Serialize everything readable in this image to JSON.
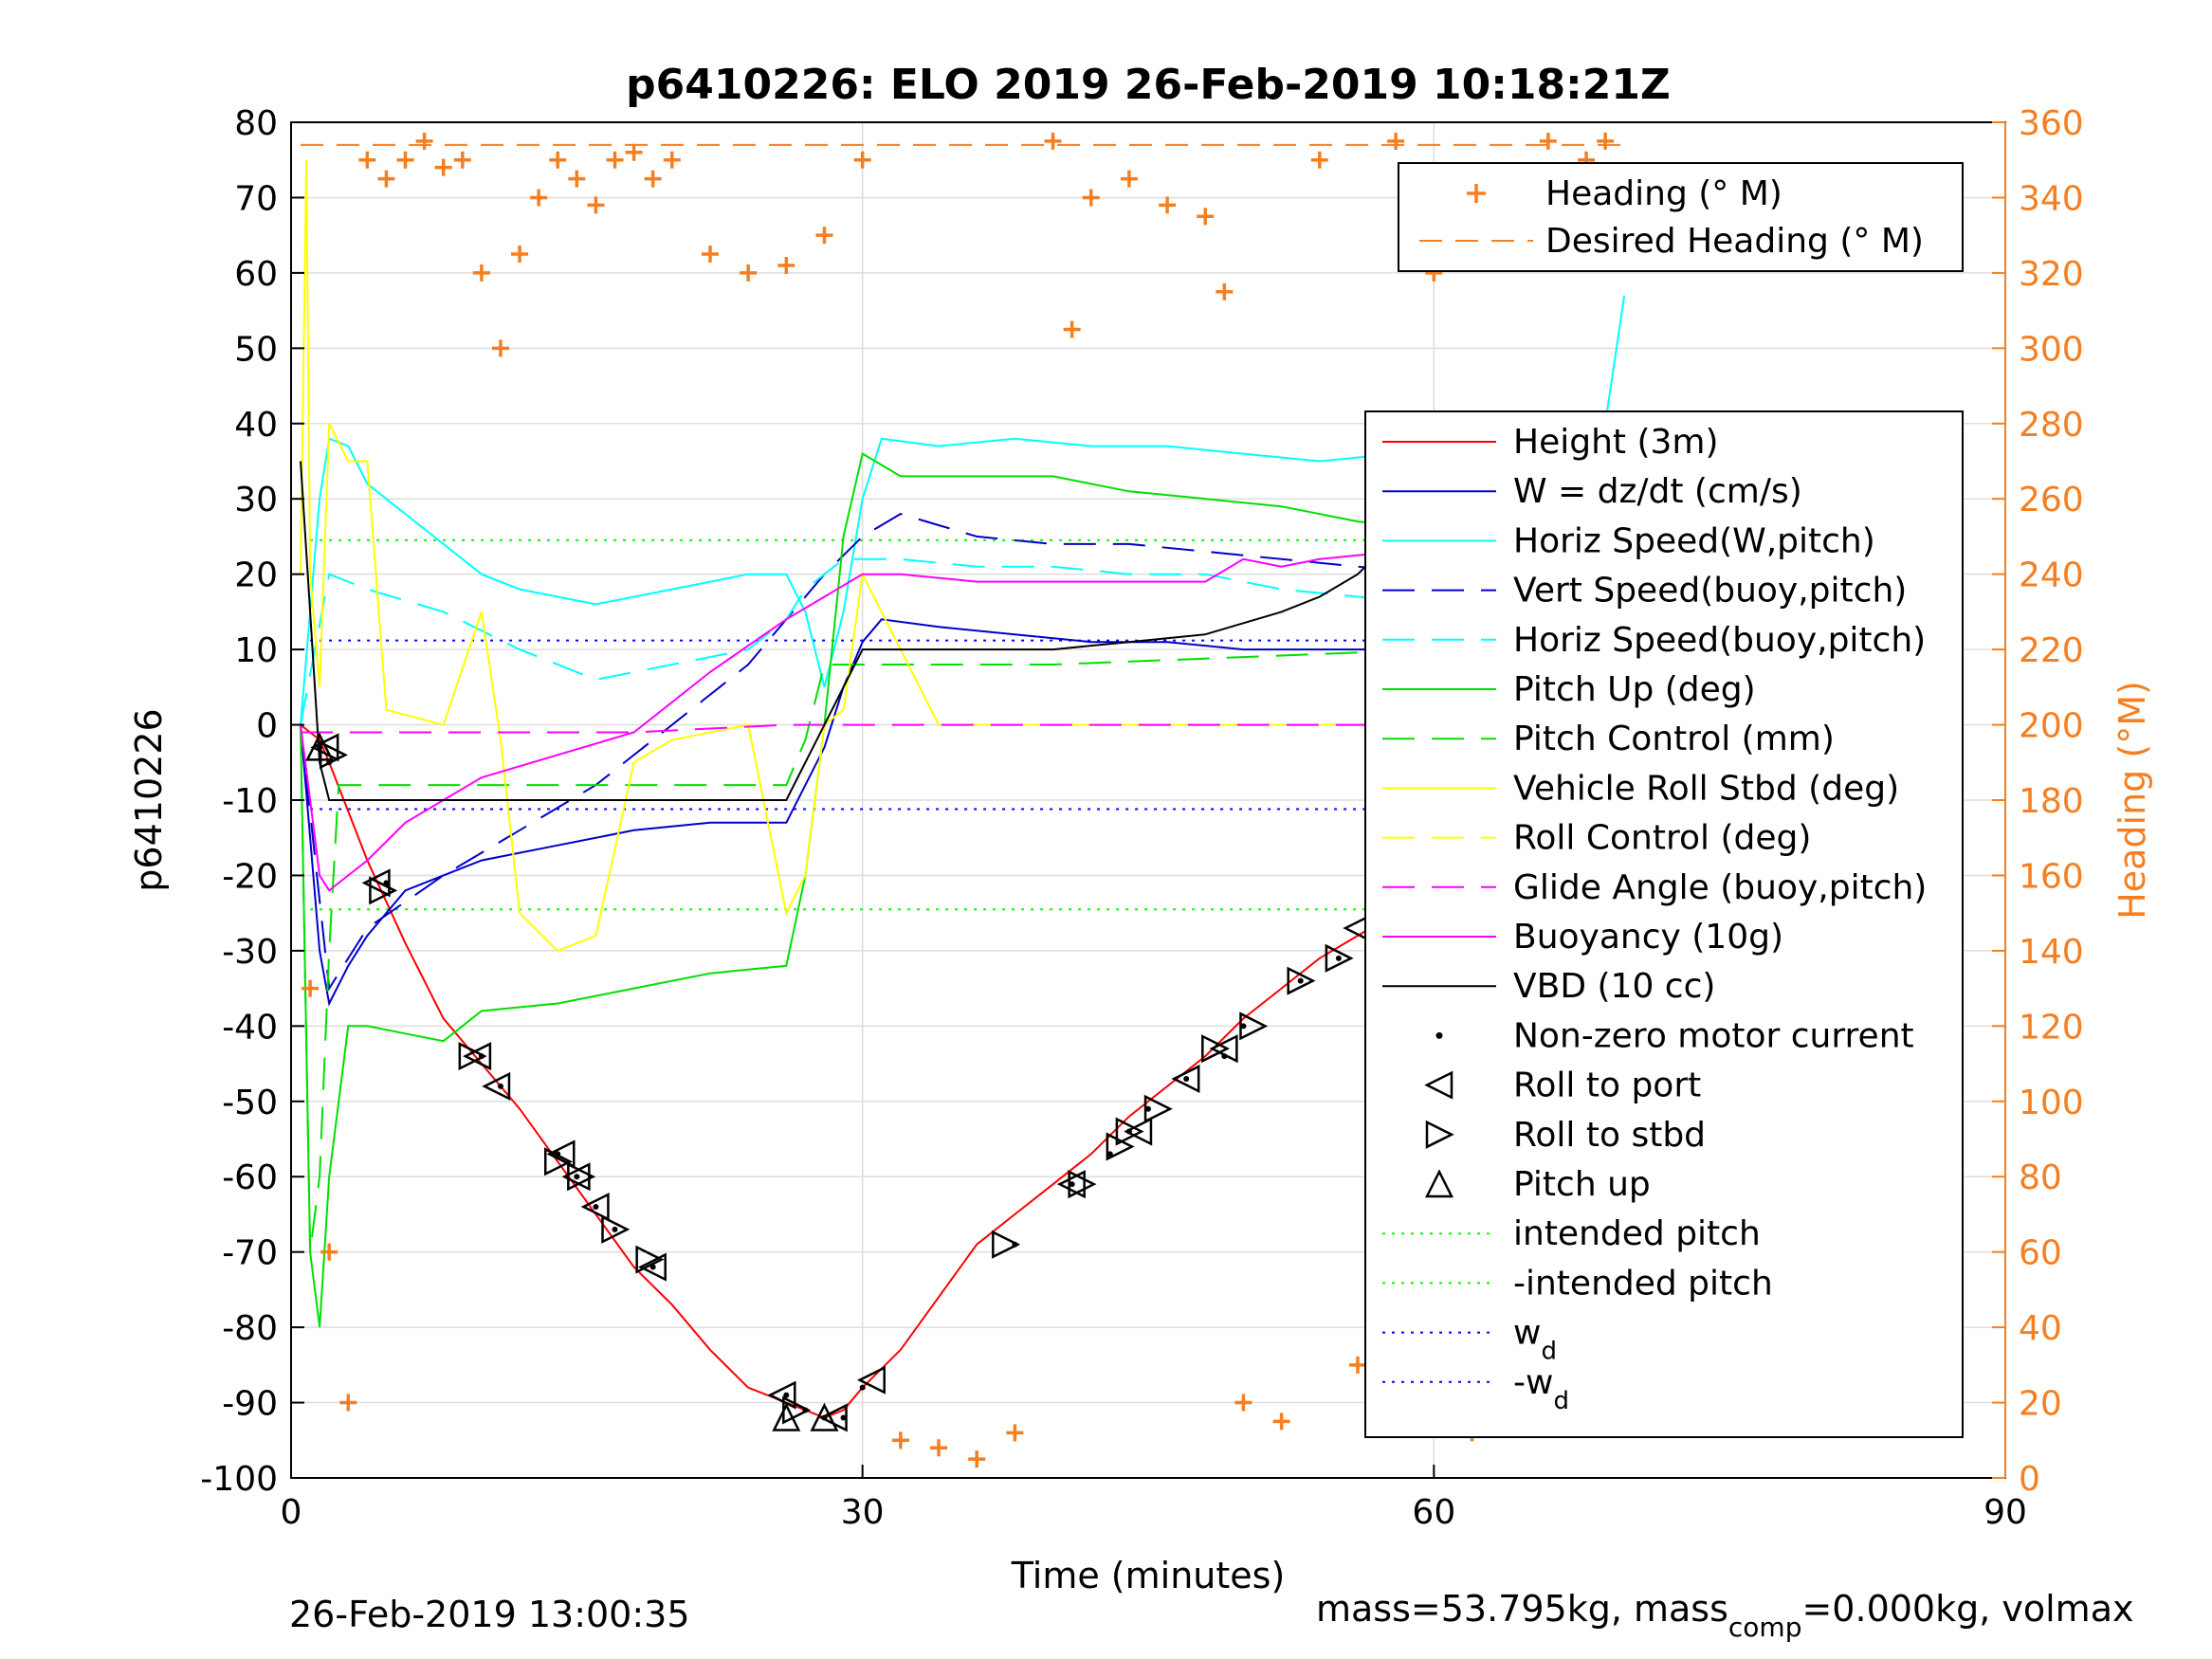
{
  "chart_data": {
    "type": "line",
    "title": "p6410226: ELO 2019 26-Feb-2019 10:18:21Z",
    "xlabel": "Time (minutes)",
    "ylabel": "p6410226",
    "y2label": "Heading (°M)",
    "xlim": [
      0,
      90
    ],
    "ylim": [
      -100,
      80
    ],
    "y2lim": [
      0,
      360
    ],
    "xticks": [
      "0",
      "30",
      "60",
      "90"
    ],
    "yticks": [
      "80",
      "70",
      "60",
      "50",
      "40",
      "30",
      "20",
      "10",
      "0",
      "-10",
      "-20",
      "-30",
      "-40",
      "-50",
      "-60",
      "-70",
      "-80",
      "-90",
      "-100"
    ],
    "y2ticks": [
      "360",
      "340",
      "320",
      "300",
      "280",
      "260",
      "240",
      "220",
      "200",
      "180",
      "160",
      "140",
      "120",
      "100",
      "80",
      "60",
      "40",
      "20",
      "0"
    ],
    "grid": true,
    "colors": {
      "heading": "#f57f20",
      "height": "#ff0000",
      "w": "#0000cc",
      "horiz": "#00ffff",
      "pitch": "#00e000",
      "roll": "#ffff00",
      "glide": "#ff00ff",
      "vbd": "#000000",
      "intended": "#00ff00",
      "wd": "#0000ff"
    },
    "legend_top": {
      "position": "top-right",
      "entries": [
        "Heading (° M)",
        "Desired Heading (° M)"
      ]
    },
    "legend_main": {
      "position": "right",
      "entries": [
        "Height (3m)",
        "W = dz/dt (cm/s)",
        "Horiz Speed(W,pitch)",
        "Vert Speed(buoy,pitch)",
        "Horiz Speed(buoy,pitch)",
        "Pitch Up (deg)",
        "Pitch Control (mm)",
        "Vehicle Roll Stbd (deg)",
        "Roll Control (deg)",
        "Glide Angle (buoy,pitch)",
        "Buoyancy (10g)",
        "VBD (10 cc)",
        "Non-zero motor current",
        "Roll to port",
        "Roll to stbd",
        "Pitch up",
        "intended pitch",
        "-intended pitch",
        "w",
        "-w"
      ],
      "subscripts": {
        "w": "d",
        "-w": "d"
      }
    },
    "reference_lines": {
      "intended_pitch": 24.5,
      "neg_intended_pitch": -24.5,
      "w_d": 11.2,
      "neg_w_d": -11.2,
      "desired_heading": 354
    },
    "series": [
      {
        "name": "Height (3m)",
        "x": [
          0.5,
          1.5,
          2,
          4,
          6,
          8,
          10,
          12,
          14,
          16,
          18,
          20,
          22,
          24,
          26,
          27,
          28,
          29,
          30,
          32,
          34,
          36,
          38,
          40,
          42,
          44,
          46,
          48,
          50,
          52,
          54,
          56,
          58,
          60,
          62,
          64,
          66,
          68,
          69
        ],
        "y": [
          0,
          -2,
          -5,
          -18,
          -29,
          -39,
          -45,
          -51,
          -58,
          -65,
          -72,
          -77,
          -83,
          -88,
          -90,
          -91,
          -92,
          -91,
          -88,
          -83,
          -76,
          -69,
          -65,
          -61,
          -57,
          -52,
          -48,
          -44,
          -39,
          -35,
          -31,
          -28,
          -25,
          -20,
          -15,
          -11,
          -7,
          -3,
          -1
        ]
      },
      {
        "name": "W = dz/dt (cm/s)",
        "x": [
          0.5,
          1,
          1.5,
          2,
          3,
          4,
          6,
          8,
          10,
          14,
          18,
          22,
          26,
          28,
          29,
          30,
          31,
          34,
          38,
          42,
          46,
          50,
          54,
          58,
          62,
          66,
          69
        ],
        "y": [
          0,
          -15,
          -30,
          -37,
          -32,
          -28,
          -22,
          -20,
          -18,
          -16,
          -14,
          -13,
          -13,
          -3,
          5,
          11,
          14,
          13,
          12,
          11,
          11,
          10,
          10,
          10,
          10,
          9,
          9
        ]
      },
      {
        "name": "Horiz Speed(W,pitch)",
        "x": [
          0.5,
          1,
          1.5,
          2,
          3,
          4,
          6,
          8,
          10,
          12,
          14,
          16,
          20,
          24,
          26,
          27,
          28,
          29,
          30,
          31,
          34,
          38,
          42,
          46,
          50,
          54,
          58,
          62,
          66,
          68,
          69,
          70
        ],
        "y": [
          0,
          15,
          30,
          38,
          37,
          32,
          28,
          24,
          20,
          18,
          17,
          16,
          18,
          20,
          20,
          15,
          5,
          15,
          30,
          38,
          37,
          38,
          37,
          37,
          36,
          35,
          36,
          38,
          38,
          36,
          40,
          57
        ]
      },
      {
        "name": "Vert Speed(buoy,pitch)",
        "x": [
          0.5,
          2,
          4,
          8,
          12,
          16,
          20,
          24,
          26,
          28,
          30,
          32,
          36,
          40,
          44,
          48,
          52,
          56,
          60,
          64,
          68
        ],
        "y": [
          0,
          -35,
          -27,
          -20,
          -14,
          -8,
          0,
          8,
          14,
          20,
          25,
          28,
          25,
          24,
          24,
          23,
          22,
          21,
          20,
          19,
          18
        ]
      },
      {
        "name": "Horiz Speed(buoy,pitch)",
        "x": [
          0.5,
          2,
          4,
          8,
          12,
          16,
          20,
          24,
          26,
          27,
          28,
          29,
          30,
          32,
          36,
          40,
          44,
          48,
          52,
          56,
          60,
          64,
          68,
          69
        ],
        "y": [
          0,
          20,
          18,
          15,
          10,
          6,
          8,
          10,
          14,
          18,
          20,
          22,
          22,
          22,
          21,
          21,
          20,
          20,
          18,
          17,
          16,
          15,
          14,
          12
        ]
      },
      {
        "name": "Pitch Up (deg)",
        "x": [
          0.5,
          1,
          1.5,
          2,
          3,
          4,
          6,
          8,
          10,
          14,
          18,
          22,
          26,
          27,
          28,
          29,
          30,
          32,
          36,
          40,
          44,
          48,
          52,
          56,
          60,
          64,
          68,
          69
        ],
        "y": [
          0,
          -70,
          -80,
          -60,
          -40,
          -40,
          -41,
          -42,
          -38,
          -37,
          -35,
          -33,
          -32,
          -20,
          0,
          25,
          36,
          33,
          33,
          33,
          31,
          30,
          29,
          27,
          26,
          25,
          23,
          22
        ]
      },
      {
        "name": "Pitch Control (mm)",
        "x": [
          0.5,
          1,
          1.5,
          2,
          2.5,
          4,
          10,
          20,
          26,
          27,
          28,
          29,
          30,
          34,
          40,
          50,
          60,
          66,
          69
        ],
        "y": [
          0,
          -70,
          -60,
          -30,
          -8,
          -8,
          -8,
          -8,
          -8,
          -2,
          8,
          8,
          8,
          8,
          8,
          9,
          10,
          10,
          10
        ]
      },
      {
        "name": "Vehicle Roll Stbd (deg)",
        "x": [
          0.5,
          0.8,
          1,
          1.5,
          2,
          3,
          4,
          5,
          8,
          10,
          11,
          12,
          14,
          16,
          18,
          20,
          24,
          26,
          27,
          28,
          29,
          30,
          34,
          38,
          42,
          46,
          50,
          54,
          58,
          62,
          66,
          70
        ],
        "y": [
          20,
          75,
          20,
          5,
          40,
          35,
          35,
          2,
          0,
          15,
          -2,
          -25,
          -30,
          -28,
          -5,
          -2,
          0,
          -25,
          -20,
          0,
          2,
          20,
          0,
          0,
          0,
          0,
          0,
          0,
          0,
          0,
          0,
          0
        ]
      },
      {
        "name": "Glide Angle (buoy,pitch)",
        "x": [
          0.5,
          3,
          6,
          10,
          14,
          18,
          22,
          26,
          28,
          30,
          34,
          38,
          42,
          46,
          50,
          54,
          58,
          62,
          66,
          69
        ],
        "y": [
          -1,
          -1,
          -1,
          -1,
          -1,
          -1,
          -0.5,
          0,
          0,
          0,
          0,
          0,
          0,
          0,
          0,
          0,
          0,
          0,
          0,
          0
        ]
      },
      {
        "name": "Buoyancy (10g)",
        "x": [
          0.5,
          1,
          1.5,
          2,
          3,
          4,
          6,
          8,
          10,
          14,
          18,
          22,
          26,
          28,
          30,
          32,
          36,
          40,
          44,
          48,
          50,
          52,
          54,
          58,
          62,
          66,
          68,
          69
        ],
        "y": [
          0,
          -10,
          -20,
          -22,
          -20,
          -18,
          -13,
          -10,
          -7,
          -4,
          -1,
          7,
          14,
          17,
          20,
          20,
          19,
          19,
          19,
          19,
          22,
          21,
          22,
          23,
          24,
          24,
          24,
          24
        ]
      },
      {
        "name": "VBD (10 cc)",
        "x": [
          0.5,
          1,
          1.5,
          2,
          2.5,
          4,
          10,
          20,
          26,
          27,
          28,
          29,
          30,
          34,
          40,
          44,
          48,
          52,
          54,
          56,
          58,
          60,
          62,
          64,
          66,
          68,
          69
        ],
        "y": [
          35,
          15,
          -5,
          -10,
          -10,
          -10,
          -10,
          -10,
          -10,
          -5,
          0,
          5,
          10,
          10,
          10,
          11,
          12,
          15,
          17,
          20,
          25,
          28,
          31,
          33,
          35,
          36,
          36
        ]
      },
      {
        "name": "Heading (° M)",
        "x": [
          1,
          2,
          3,
          4,
          5,
          6,
          7,
          8,
          9,
          10,
          11,
          12,
          13,
          14,
          15,
          16,
          17,
          18,
          19,
          20,
          22,
          24,
          26,
          28,
          30,
          32,
          34,
          36,
          38,
          40,
          41,
          42,
          44,
          46,
          48,
          49,
          50,
          52,
          54,
          56,
          58,
          60,
          62,
          64,
          66,
          68,
          69
        ],
        "y": [
          130,
          60,
          20,
          350,
          345,
          350,
          355,
          348,
          350,
          320,
          300,
          325,
          340,
          350,
          345,
          338,
          350,
          352,
          345,
          350,
          325,
          320,
          322,
          330,
          350,
          10,
          8,
          5,
          12,
          355,
          305,
          340,
          345,
          338,
          335,
          315,
          20,
          15,
          350,
          30,
          355,
          320,
          12,
          340,
          355,
          350,
          355
        ]
      },
      {
        "name": "Non-zero motor current",
        "x": [
          1.5,
          2,
          5,
          10,
          11,
          14,
          15,
          16,
          17,
          19,
          26,
          27,
          28,
          29,
          30,
          38,
          41,
          43,
          44,
          45,
          47,
          49,
          50,
          53,
          55,
          57,
          59,
          61,
          63,
          64,
          66,
          68
        ],
        "y": [
          -3,
          -5,
          -21,
          -44,
          -48,
          -57,
          -60,
          -64,
          -67,
          -72,
          -89,
          -91,
          -92,
          -92,
          -88,
          -69,
          -61,
          -57,
          -54,
          -51,
          -47,
          -44,
          -40,
          -34,
          -31,
          -27,
          -24,
          -19,
          -15,
          -12,
          -8,
          -4
        ]
      }
    ],
    "markers": {
      "roll_to_port": [
        [
          1.8,
          -3
        ],
        [
          4.5,
          -21
        ],
        [
          9.8,
          -44
        ],
        [
          10.8,
          -48
        ],
        [
          14.2,
          -57
        ],
        [
          15,
          -60
        ],
        [
          16,
          -64
        ],
        [
          19,
          -72
        ],
        [
          25.8,
          -89
        ],
        [
          28.5,
          -92
        ],
        [
          30.5,
          -87
        ],
        [
          41,
          -61
        ],
        [
          44.5,
          -54
        ],
        [
          47,
          -47
        ],
        [
          49,
          -43
        ],
        [
          56,
          -27
        ],
        [
          60,
          -21
        ],
        [
          63.5,
          -15
        ],
        [
          65,
          -12
        ],
        [
          68,
          -4
        ]
      ],
      "roll_to_stbd": [
        [
          2.2,
          -4
        ],
        [
          4.8,
          -22
        ],
        [
          9.5,
          -44
        ],
        [
          14,
          -58
        ],
        [
          15.2,
          -60
        ],
        [
          17,
          -67
        ],
        [
          18.8,
          -71
        ],
        [
          26.5,
          -91
        ],
        [
          37.5,
          -69
        ],
        [
          41.5,
          -61
        ],
        [
          43.5,
          -56
        ],
        [
          44,
          -54
        ],
        [
          45.5,
          -51
        ],
        [
          48.5,
          -43
        ],
        [
          50.5,
          -40
        ],
        [
          53,
          -34
        ],
        [
          55,
          -31
        ],
        [
          58.5,
          -24
        ],
        [
          61.5,
          -19
        ],
        [
          62.5,
          -16
        ],
        [
          64.8,
          -12
        ],
        [
          66.2,
          -8
        ],
        [
          68.5,
          -3
        ]
      ],
      "pitch_up": [
        [
          1.5,
          -3
        ],
        [
          26,
          -92
        ],
        [
          28,
          -92
        ]
      ]
    },
    "annotations": {
      "bottom_left": "26-Feb-2019 13:00:35",
      "bottom_right_pre": "mass=53.795kg, mass",
      "bottom_right_sub": "comp",
      "bottom_right_post": "=0.000kg, volmax"
    }
  }
}
